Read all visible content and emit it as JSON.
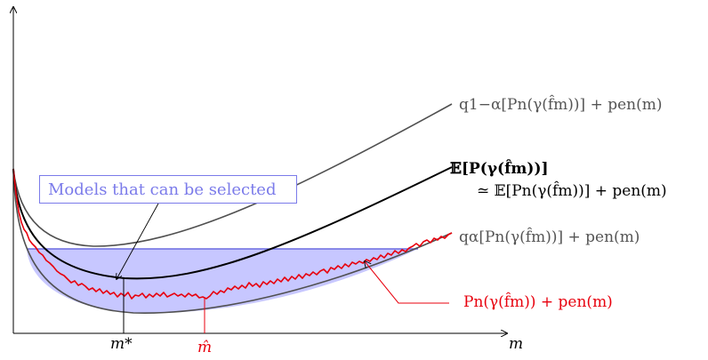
{
  "colors": {
    "region_fill": "#c7c7ff",
    "region_edge": "#6b6be0",
    "box_color": "#7b7bea",
    "upper_curve": "#505050",
    "mean_curve": "#000000",
    "lower_curve": "#505050",
    "empirical_curve": "#e8000d",
    "axes": "#000000"
  },
  "labels": {
    "box": "Models that can be selected",
    "upper": "q1−α[Pn(γ(f̂m))] + pen(m)",
    "mean_line1": "𝔼[P(γ(f̂m))]",
    "mean_line2": "≃ 𝔼[Pn(γ(f̂m))] + pen(m)",
    "lower": "qα[Pn(γ(f̂m))] + pen(m)",
    "empirical": "Pn(γ(f̂m)) + pen(m)",
    "x_axis": "m",
    "m_star": "m*",
    "m_hat": "m̂"
  }
}
